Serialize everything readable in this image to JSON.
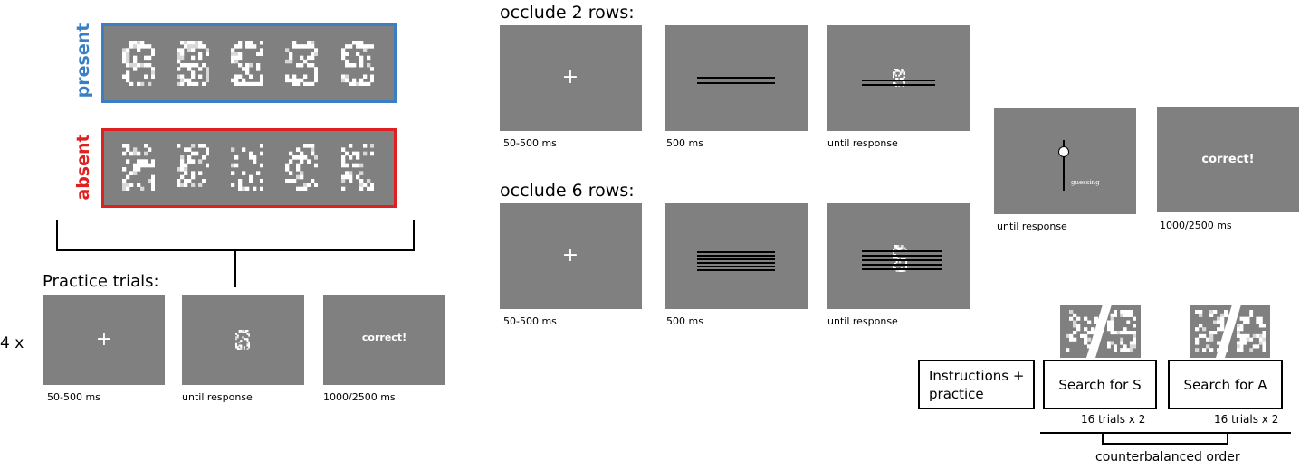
{
  "stimulus_sets": {
    "present_label": "present",
    "absent_label": "absent",
    "present_color": "#3a7fc4",
    "absent_color": "#e02020"
  },
  "practice": {
    "title": "Practice trials:",
    "repeat": "4 x",
    "screens": [
      {
        "content": "fixation-cross",
        "label": "50-500 ms"
      },
      {
        "content": "stimulus",
        "label": "until response"
      },
      {
        "content": "feedback",
        "feedback": "correct!",
        "label": "1000/2500 ms"
      }
    ]
  },
  "occlude2": {
    "title": "occlude 2 rows:",
    "rows": 2,
    "screens": [
      {
        "content": "fixation-cross",
        "label": "50-500 ms"
      },
      {
        "content": "occluder",
        "label": "500 ms"
      },
      {
        "content": "occluded-stimulus",
        "label": "until response"
      }
    ]
  },
  "occlude6": {
    "title": "occlude 6 rows:",
    "rows": 6,
    "screens": [
      {
        "content": "fixation-cross",
        "label": "50-500 ms"
      },
      {
        "content": "occluder",
        "label": "500 ms"
      },
      {
        "content": "occluded-stimulus",
        "label": "until response"
      }
    ]
  },
  "response": {
    "rating_label": "until response",
    "slider_text": "guessing",
    "feedback_text": "correct!",
    "feedback_label": "1000/2500 ms"
  },
  "procedure": {
    "instructions": "Instructions + practice",
    "search_s": "Search for S",
    "search_a": "Search for A",
    "trials_s": "16 trials x 2",
    "trials_a": "16 trials x 2",
    "order_label": "counterbalanced order"
  }
}
